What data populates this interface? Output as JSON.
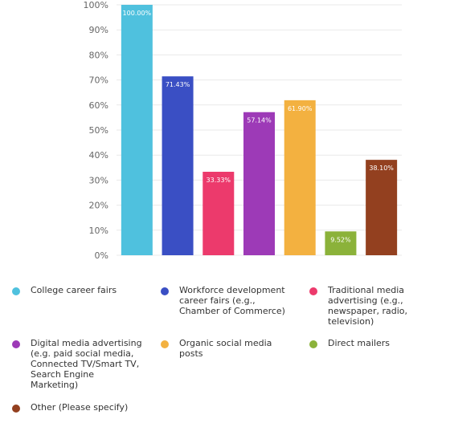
{
  "chart_data": {
    "type": "bar",
    "title": "",
    "xlabel": "",
    "ylabel": "",
    "ylim": [
      0,
      100
    ],
    "y_ticks": [
      "0%",
      "10%",
      "20%",
      "30%",
      "40%",
      "50%",
      "60%",
      "70%",
      "80%",
      "90%",
      "100%"
    ],
    "grid": true,
    "legend_position": "bottom",
    "categories": [
      "College career fairs",
      "Workforce development career fairs (e.g., Chamber of Commerce)",
      "Traditional media advertising (e.g., newspaper, radio, television)",
      "Digital media advertising (e.g. paid social media, Connected TV/Smart TV, Search Engine Marketing)",
      "Organic social media posts",
      "Direct mailers",
      "Other (Please specify)"
    ],
    "values": [
      100.0,
      71.43,
      33.33,
      57.14,
      61.9,
      9.52,
      38.1
    ],
    "value_labels": [
      "100.00%",
      "71.43%",
      "33.33%",
      "57.14%",
      "61.90%",
      "9.52%",
      "38.10%"
    ],
    "colors": [
      "#4fc1de",
      "#3a4fc4",
      "#ec3a6c",
      "#9d3ab7",
      "#f3b140",
      "#8bb23a",
      "#93401f"
    ]
  },
  "legend": {
    "items": [
      {
        "label_lines": [
          "College career fairs"
        ]
      },
      {
        "label_lines": [
          "Workforce development",
          "career fairs (e.g.,",
          "Chamber of Commerce)"
        ]
      },
      {
        "label_lines": [
          "Traditional media",
          "advertising (e.g.,",
          "newspaper, radio,",
          "television)"
        ]
      },
      {
        "label_lines": [
          "Digital media advertising",
          "(e.g. paid social media,",
          "Connected TV/Smart TV,",
          "Search Engine",
          "Marketing)"
        ]
      },
      {
        "label_lines": [
          "Organic social media",
          "posts"
        ]
      },
      {
        "label_lines": [
          "Direct mailers"
        ]
      },
      {
        "label_lines": [
          "Other (Please specify)"
        ]
      }
    ]
  }
}
